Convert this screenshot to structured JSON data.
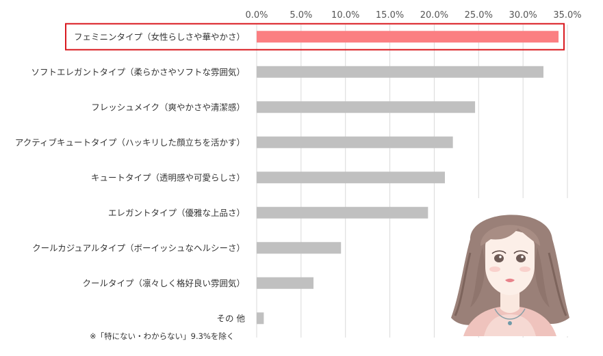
{
  "chart_data": {
    "type": "bar",
    "orientation": "horizontal",
    "categories": [
      "フェミニンタイプ（女性らしさや華やかさ）",
      "ソフトエレガントタイプ（柔らかさやソフトな雰囲気）",
      "フレッシュメイク（爽やかさや清潔感）",
      "アクティブキュートタイプ（ハッキリした顔立ちを活かす）",
      "キュートタイプ（透明感や可愛らしさ）",
      "エレガントタイプ（優雅な上品さ）",
      "クールカジュアルタイプ（ボーイッシュなヘルシーさ）",
      "クールタイプ（凛々しく格好良い雰囲気）",
      "その 他"
    ],
    "values": [
      34.0,
      32.3,
      24.6,
      22.1,
      21.2,
      19.3,
      9.5,
      6.4,
      0.8
    ],
    "xlim": [
      0,
      35
    ],
    "x_ticks": [
      "0.0%",
      "5.0%",
      "10.0%",
      "15.0%",
      "20.0%",
      "25.0%",
      "30.0%",
      "35.0%"
    ],
    "x_axis_position": "top",
    "grid": true,
    "highlight_index": 0,
    "colors": {
      "bar": "#c0c0c0",
      "highlight_bar": "#fb7f82",
      "highlight_box": "#d9191f",
      "grid": "#d9d9d9"
    },
    "footnote": "※「特にない・わからない」9.3%を除く"
  },
  "illustration": {
    "subject": "woman-portrait-icon"
  }
}
